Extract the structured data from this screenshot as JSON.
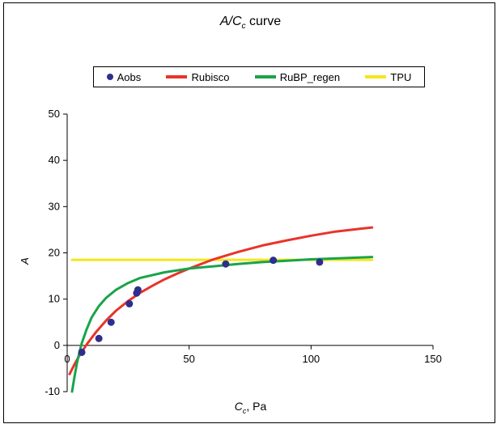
{
  "chart_data": {
    "type": "scatter",
    "title_main": "A/C",
    "title_sub": "c",
    "title_rest": " curve",
    "xlabel_main": "C",
    "xlabel_sub": "c",
    "xlabel_rest": ", Pa",
    "ylabel": "A",
    "xlim": [
      0,
      150
    ],
    "ylim": [
      -10,
      50
    ],
    "xticks": [
      0,
      50,
      100,
      150
    ],
    "yticks": [
      -10,
      0,
      10,
      20,
      30,
      40,
      50
    ],
    "grid": false,
    "legend_position": "top",
    "series": [
      {
        "name": "Aobs",
        "kind": "points",
        "color": "#2e2e8f",
        "x": [
          6,
          13,
          18,
          25.5,
          28.5,
          29,
          65,
          84.5,
          103.5
        ],
        "y": [
          -1.5,
          1.5,
          5,
          9,
          11.3,
          12,
          17.6,
          18.4,
          18
        ]
      },
      {
        "name": "Rubisco",
        "kind": "line",
        "color": "#e8342a",
        "x": [
          1,
          3,
          5,
          8,
          12,
          16,
          20,
          25,
          30,
          35,
          40,
          45,
          50,
          55,
          60,
          65,
          70,
          80,
          90,
          100,
          110,
          120,
          125
        ],
        "y": [
          -6.2,
          -4.1,
          -2.2,
          0.2,
          3.0,
          5.4,
          7.5,
          9.6,
          11.4,
          12.9,
          14.3,
          15.5,
          16.6,
          17.6,
          18.6,
          19.4,
          20.2,
          21.6,
          22.7,
          23.7,
          24.6,
          25.2,
          25.5
        ]
      },
      {
        "name": "RuBP_regen",
        "kind": "line",
        "color": "#1aa34a",
        "x": [
          2,
          3,
          4,
          5,
          6,
          8,
          10,
          13,
          16,
          20,
          25,
          30,
          40,
          50,
          60,
          70,
          80,
          90,
          100,
          110,
          125
        ],
        "y": [
          -10,
          -6.8,
          -3.8,
          -1.5,
          0.5,
          3.5,
          6.0,
          8.5,
          10.3,
          12.0,
          13.5,
          14.6,
          15.8,
          16.6,
          17.1,
          17.6,
          18.0,
          18.3,
          18.6,
          18.8,
          19.1
        ]
      },
      {
        "name": "TPU",
        "kind": "line",
        "color": "#f2e81a",
        "x": [
          2,
          125
        ],
        "y": [
          18.5,
          18.5
        ]
      }
    ]
  }
}
